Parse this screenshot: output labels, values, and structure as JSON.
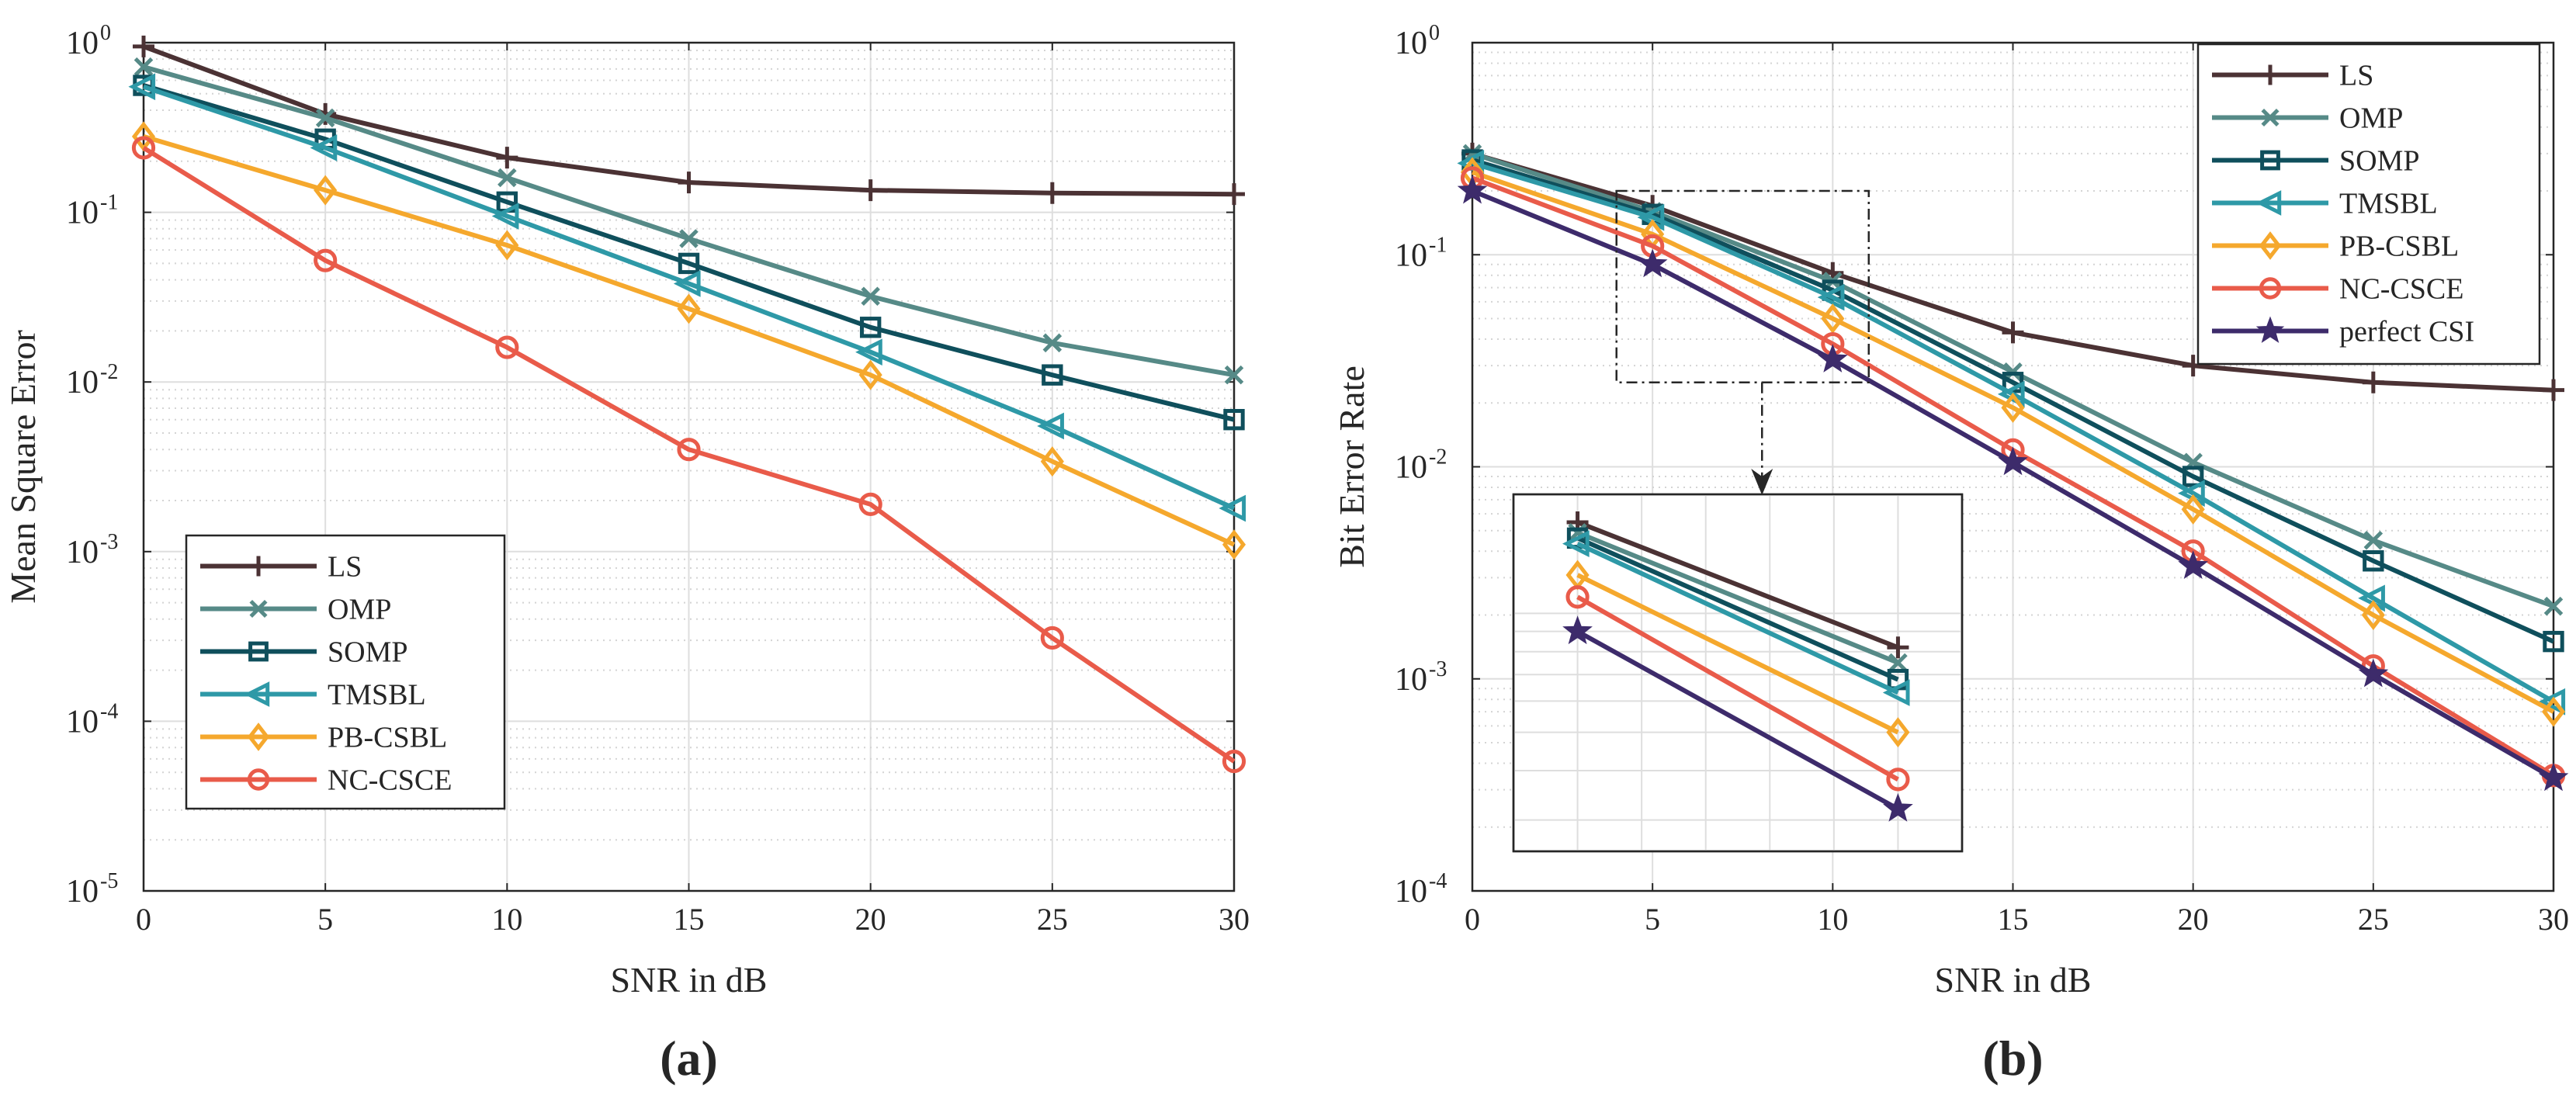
{
  "chart_data": [
    {
      "id": "a",
      "type": "line",
      "panel_label": "(a)",
      "title": "",
      "xlabel": "SNR in dB",
      "ylabel": "Mean Square Error",
      "yscale": "log",
      "xlim": [
        0,
        30
      ],
      "ylim_exp": [
        -5,
        0
      ],
      "x": [
        0,
        5,
        10,
        15,
        20,
        25,
        30
      ],
      "x_ticks": [
        "0",
        "5",
        "10",
        "15",
        "20",
        "25",
        "30"
      ],
      "y_tick_exps": [
        0,
        -1,
        -2,
        -3,
        -4,
        -5
      ],
      "grid": true,
      "legend_position": "lower-left",
      "series": [
        {
          "name": "LS",
          "marker": "plus",
          "color": "#4b3234",
          "values": [
            0.95,
            0.38,
            0.21,
            0.15,
            0.135,
            0.13,
            0.128
          ]
        },
        {
          "name": "OMP",
          "marker": "x",
          "color": "#568a87",
          "values": [
            0.72,
            0.36,
            0.16,
            0.07,
            0.032,
            0.017,
            0.011
          ]
        },
        {
          "name": "SOMP",
          "marker": "square",
          "color": "#0f4f5c",
          "values": [
            0.56,
            0.27,
            0.115,
            0.05,
            0.021,
            0.011,
            0.006
          ]
        },
        {
          "name": "TMSBL",
          "marker": "triangle-left",
          "color": "#2e99a7",
          "values": [
            0.55,
            0.24,
            0.095,
            0.038,
            0.015,
            0.0055,
            0.0018
          ]
        },
        {
          "name": "PB-CSBL",
          "marker": "diamond",
          "color": "#f5a82d",
          "values": [
            0.28,
            0.135,
            0.064,
            0.027,
            0.011,
            0.0034,
            0.0011
          ]
        },
        {
          "name": "NC-CSCE",
          "marker": "circle",
          "color": "#e95b4a",
          "values": [
            0.24,
            0.052,
            0.016,
            0.004,
            0.0019,
            0.00031,
            5.8e-05
          ]
        }
      ]
    },
    {
      "id": "b",
      "type": "line",
      "panel_label": "(b)",
      "title": "",
      "xlabel": "SNR in dB",
      "ylabel": "Bit Error Rate",
      "yscale": "log",
      "xlim": [
        0,
        30
      ],
      "ylim_exp": [
        -4,
        0
      ],
      "x": [
        0,
        5,
        10,
        15,
        20,
        25,
        30
      ],
      "x_ticks": [
        "0",
        "5",
        "10",
        "15",
        "20",
        "25",
        "30"
      ],
      "y_tick_exps": [
        0,
        -1,
        -2,
        -3,
        -4
      ],
      "grid": true,
      "legend_position": "top-right",
      "inset": {
        "xlim": [
          4,
          11
        ],
        "ylim": [
          0.025,
          0.2
        ]
      },
      "series": [
        {
          "name": "LS",
          "marker": "plus",
          "color": "#4b3234",
          "values": [
            0.3,
            0.17,
            0.082,
            0.043,
            0.03,
            0.025,
            0.023
          ]
        },
        {
          "name": "OMP",
          "marker": "x",
          "color": "#568a87",
          "values": [
            0.3,
            0.16,
            0.075,
            0.028,
            0.0105,
            0.0045,
            0.0022
          ]
        },
        {
          "name": "SOMP",
          "marker": "square",
          "color": "#0f4f5c",
          "values": [
            0.28,
            0.155,
            0.068,
            0.025,
            0.009,
            0.0036,
            0.0015
          ]
        },
        {
          "name": "TMSBL",
          "marker": "triangle-left",
          "color": "#2e99a7",
          "values": [
            0.27,
            0.15,
            0.063,
            0.022,
            0.0075,
            0.0024,
            0.00078
          ]
        },
        {
          "name": "PB-CSBL",
          "marker": "diamond",
          "color": "#f5a82d",
          "values": [
            0.245,
            0.125,
            0.05,
            0.019,
            0.0063,
            0.002,
            0.0007
          ]
        },
        {
          "name": "NC-CSCE",
          "marker": "circle",
          "color": "#e95b4a",
          "values": [
            0.23,
            0.11,
            0.038,
            0.012,
            0.004,
            0.00115,
            0.00035
          ]
        },
        {
          "name": "perfect CSI",
          "marker": "star",
          "color": "#3d2b6b",
          "values": [
            0.2,
            0.09,
            0.032,
            0.0105,
            0.0034,
            0.00105,
            0.00034
          ]
        }
      ]
    }
  ]
}
